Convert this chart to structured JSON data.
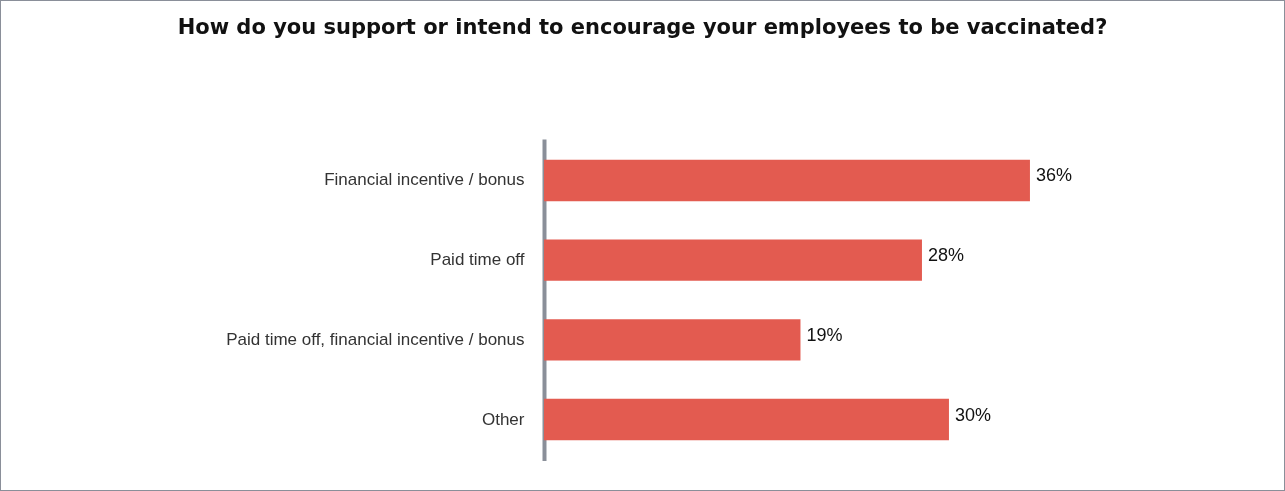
{
  "chart_data": {
    "type": "bar",
    "orientation": "horizontal",
    "title": "How do you support or intend to encourage your employees to be vaccinated?",
    "categories": [
      "Financial incentive / bonus",
      "Paid time off",
      "Paid time off, financial incentive / bonus",
      "Other"
    ],
    "values": [
      36,
      28,
      19,
      30
    ],
    "value_labels": [
      "36%",
      "28%",
      "19%",
      "30%"
    ],
    "color": "#e35b50"
  }
}
